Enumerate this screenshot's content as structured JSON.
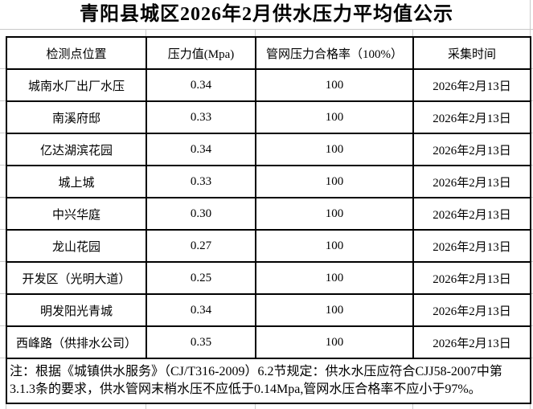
{
  "title": "青阳县城区2026年2月供水压力平均值公示",
  "table": {
    "headers": [
      "检测点位置",
      "压力值(Mpa)",
      "管网压力合格率（100%）",
      "采集时间"
    ],
    "rows": [
      {
        "location": "城南水厂出厂水压",
        "pressure": "0.34",
        "pass_rate": "100",
        "date": "2026年2月13日"
      },
      {
        "location": "南溪府邸",
        "pressure": "0.33",
        "pass_rate": "100",
        "date": "2026年2月13日"
      },
      {
        "location": "亿达湖滨花园",
        "pressure": "0.34",
        "pass_rate": "100",
        "date": "2026年2月13日"
      },
      {
        "location": "城上城",
        "pressure": "0.33",
        "pass_rate": "100",
        "date": "2026年2月13日"
      },
      {
        "location": "中兴华庭",
        "pressure": "0.30",
        "pass_rate": "100",
        "date": "2026年2月13日"
      },
      {
        "location": "龙山花园",
        "pressure": "0.27",
        "pass_rate": "100",
        "date": "2026年2月13日"
      },
      {
        "location": "开发区（光明大道）",
        "pressure": "0.25",
        "pass_rate": "100",
        "date": "2026年2月13日"
      },
      {
        "location": "明发阳光青城",
        "pressure": "0.34",
        "pass_rate": "100",
        "date": "2026年2月13日"
      },
      {
        "location": "西峰路（供排水公司）",
        "pressure": "0.35",
        "pass_rate": "100",
        "date": "2026年2月13日"
      }
    ],
    "note": "注：根据《城镇供水服务》（CJ/T316-2009）6.2节规定：供水水压应符合CJJ58-2007中第3.1.3条的要求，供水管网末梢水压不应低于0.14Mpa,管网水压合格率不应小于97%。"
  },
  "colors": {
    "text": "#000000",
    "table_border": "#000000",
    "gridline": "#c9c9c9",
    "background": "#ffffff"
  }
}
